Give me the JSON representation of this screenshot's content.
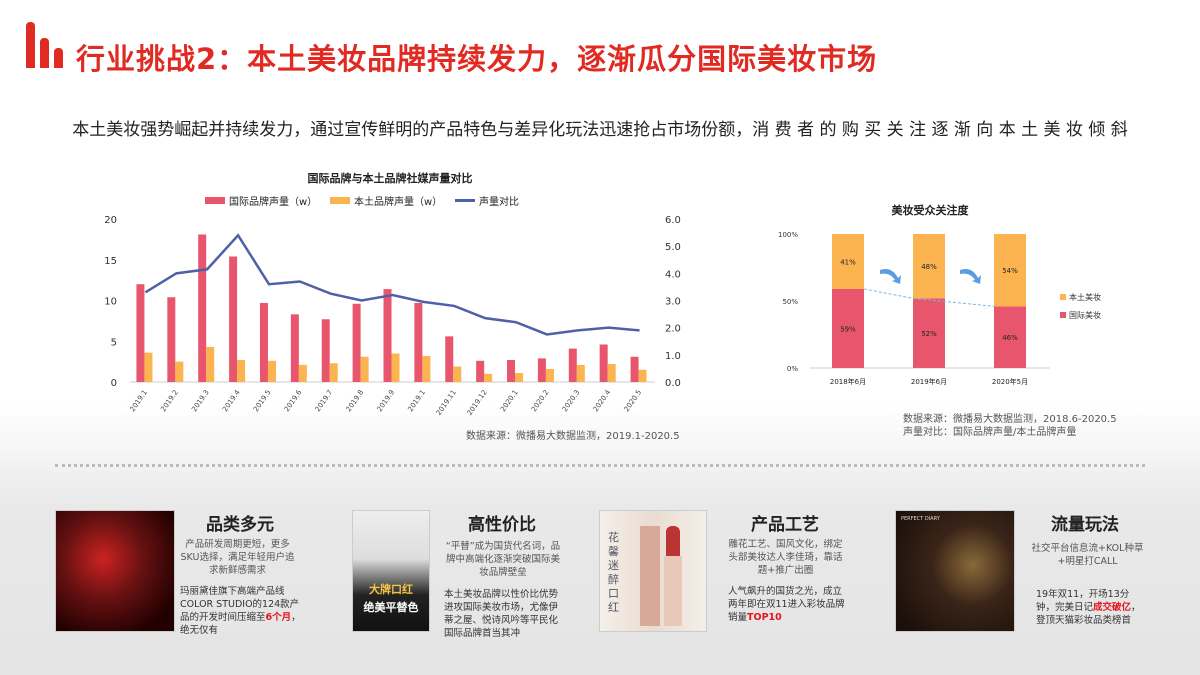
{
  "header": {
    "title": "行业挑战2：本土美妆品牌持续发力，逐渐瓜分国际美妆市场",
    "subtitle": "本土美妆强势崛起并持续发力，通过宣传鲜明的产品特色与差异化玩法迅速抢占市场份额，消 费 者 的 购 买 关 注 逐 渐 向 本 土 美 妆 倾 斜",
    "accent": "#e02a22"
  },
  "chart_data": [
    {
      "type": "bar+line",
      "title": "国际品牌与本土品牌社媒声量对比",
      "categories": [
        "2019.1",
        "2019.2",
        "2019.3",
        "2019.4",
        "2019.5",
        "2019.6",
        "2019.7",
        "2019.8",
        "2019.9",
        "2019.1",
        "2019.11",
        "2019.12",
        "2020.1",
        "2020.2",
        "2020.3",
        "2020.4",
        "2020.5"
      ],
      "series": [
        {
          "name": "国际品牌声量（w）",
          "type": "bar",
          "axis": "left",
          "color": "#e8566e",
          "values": [
            12,
            10.4,
            18.1,
            15.4,
            9.7,
            8.3,
            7.7,
            9.6,
            11.4,
            9.7,
            5.6,
            2.6,
            2.7,
            2.9,
            4.1,
            4.6,
            3.1
          ]
        },
        {
          "name": "本土品牌声量（w）",
          "type": "bar",
          "axis": "left",
          "color": "#fbb450",
          "values": [
            3.6,
            2.5,
            4.3,
            2.7,
            2.6,
            2.1,
            2.3,
            3.1,
            3.5,
            3.2,
            1.9,
            1.0,
            1.1,
            1.6,
            2.1,
            2.2,
            1.5
          ]
        },
        {
          "name": "声量对比",
          "type": "line",
          "axis": "right",
          "color": "#4f5fa8",
          "values": [
            3.3,
            4.0,
            4.15,
            5.4,
            3.6,
            3.7,
            3.25,
            3.0,
            3.2,
            2.95,
            2.8,
            2.35,
            2.2,
            1.75,
            1.9,
            2.0,
            1.9
          ]
        }
      ],
      "ylim": [
        0,
        20
      ],
      "yticks": [
        "0",
        "5",
        "10",
        "15",
        "20"
      ],
      "y2lim": [
        0,
        6
      ],
      "y2ticks": [
        "0.0",
        "1.0",
        "2.0",
        "3.0",
        "4.0",
        "5.0",
        "6.0"
      ],
      "legend": "top",
      "source": "数据来源：微播易大数据监测，2019.1-2020.5"
    },
    {
      "type": "stacked-bar",
      "title": "美妆受众关注度",
      "categories": [
        "2018年6月",
        "2019年6月",
        "2020年5月"
      ],
      "series": [
        {
          "name": "国际美妆",
          "color": "#e8566e",
          "values": [
            59,
            52,
            46
          ],
          "labels": [
            "59%",
            "52%",
            "46%"
          ]
        },
        {
          "name": "本土美妆",
          "color": "#fbb450",
          "values": [
            41,
            48,
            54
          ],
          "labels": [
            "41%",
            "48%",
            "54%"
          ]
        }
      ],
      "ylim": [
        0,
        100
      ],
      "yticks": [
        "0%",
        "50%",
        "100%"
      ],
      "legend": "right",
      "source": [
        "数据来源：微播易大数据监测，2018.6-2020.5",
        "声量对比：国际品牌声量/本土品牌声量"
      ]
    }
  ],
  "cards": [
    {
      "title": "品类多元",
      "p1": "产品研发周期更短，更多SKU选择，满足年轻用户追求新鲜感需求",
      "p2a": "玛丽黛佳旗下高端产品线COLOR STUDIO的124款产品的开发时间压缩至",
      "p2b": "6个月",
      "p2c": "，绝无仅有"
    },
    {
      "title": "高性价比",
      "p1": "“平替”成为国货代名词，品牌中高端化逐渐突破国际美妆品牌壁垒",
      "p2a": "本土美妆品牌以性价比优势进攻国际美妆市场，尤像伊蒂之屋、悦诗风吟等平民化国际品牌首当其冲",
      "img_text1": "大牌口红",
      "img_text2": "绝美平替色"
    },
    {
      "title": "产品工艺",
      "p1": "雕花工艺、国风文化，绑定头部美妆达人李佳琦，靠话题+推广出圈",
      "p2a": "人气飙升的国货之光，成立两年即在双11进入彩妆品牌销量",
      "p2b": "TOP10",
      "img_text1": "花 馨 迷 醉 口 红"
    },
    {
      "title": "流量玩法",
      "p1": "社交平台信息流+KOL种草+明星打CALL",
      "p2a": "19年双11，开场13分钟，完美日记",
      "p2b": "成交破亿",
      "p2c": "，登顶天猫彩妆品类榜首",
      "img_text1": "PERFECT DIARY"
    }
  ]
}
